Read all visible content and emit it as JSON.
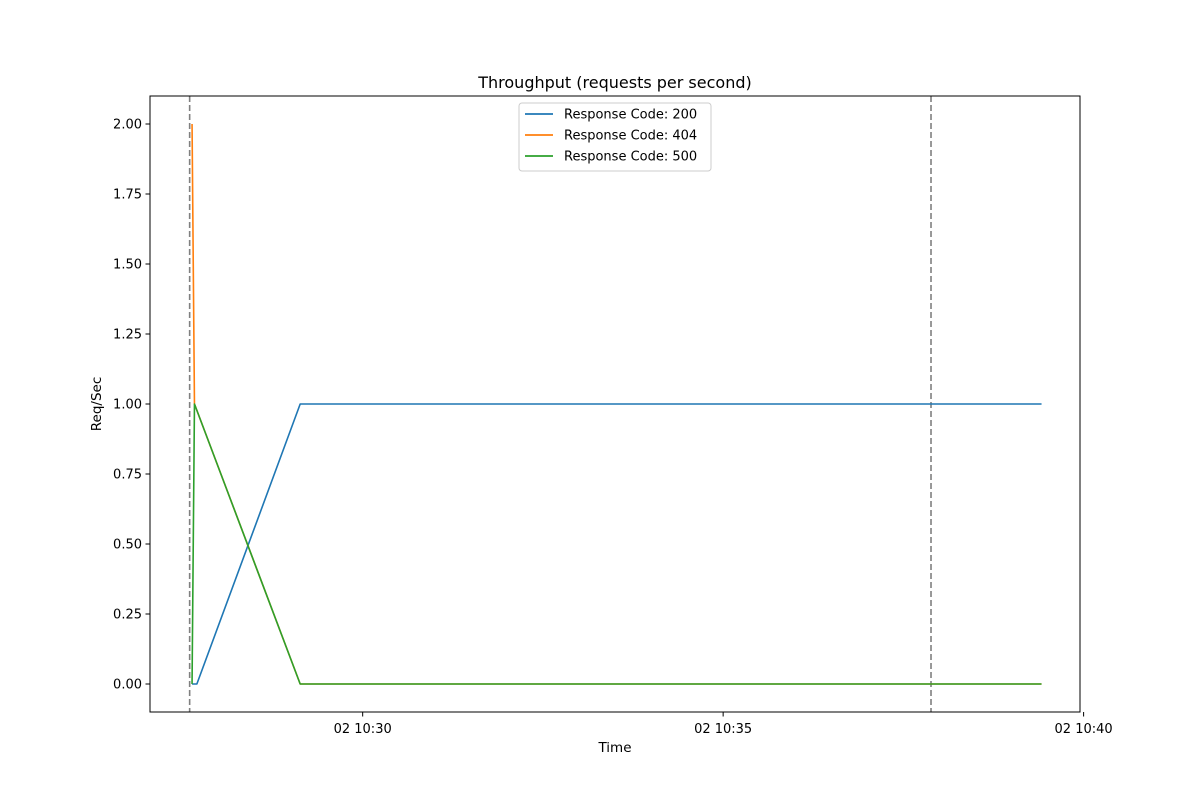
{
  "chart_data": {
    "type": "line",
    "title": "Throughput (requests per second)",
    "xlabel": "Time",
    "ylabel": "Req/Sec",
    "x_axis": {
      "type": "time",
      "range": [
        "10:27:03",
        "10:39:57"
      ],
      "ticks": [
        {
          "time": "10:30:00",
          "label": "02 10:30"
        },
        {
          "time": "10:35:00",
          "label": "02 10:35"
        },
        {
          "time": "10:40:00",
          "label": "02 10:40"
        }
      ]
    },
    "y_axis": {
      "range": [
        -0.1,
        2.1
      ],
      "ticks": [
        {
          "value": 0.0,
          "label": "0.00"
        },
        {
          "value": 0.25,
          "label": "0.25"
        },
        {
          "value": 0.5,
          "label": "0.50"
        },
        {
          "value": 0.75,
          "label": "0.75"
        },
        {
          "value": 1.0,
          "label": "1.00"
        },
        {
          "value": 1.25,
          "label": "1.25"
        },
        {
          "value": 1.5,
          "label": "1.50"
        },
        {
          "value": 1.75,
          "label": "1.75"
        },
        {
          "value": 2.0,
          "label": "2.00"
        }
      ]
    },
    "grid": false,
    "legend_position": "top-center",
    "series": [
      {
        "name": "Response Code: 200",
        "color": "#1f77b4",
        "points": [
          {
            "x": "10:27:38",
            "y": 0
          },
          {
            "x": "10:27:42",
            "y": 0
          },
          {
            "x": "10:29:08",
            "y": 1
          },
          {
            "x": "10:39:25",
            "y": 1
          }
        ]
      },
      {
        "name": "Response Code: 404",
        "color": "#ff7f0e",
        "points": [
          {
            "x": "10:27:38",
            "y": 2
          },
          {
            "x": "10:27:40",
            "y": 1
          },
          {
            "x": "10:29:08",
            "y": 0
          },
          {
            "x": "10:39:25",
            "y": 0
          }
        ]
      },
      {
        "name": "Response Code: 500",
        "color": "#2ca02c",
        "points": [
          {
            "x": "10:27:38",
            "y": 0
          },
          {
            "x": "10:27:40",
            "y": 1
          },
          {
            "x": "10:29:08",
            "y": 0
          },
          {
            "x": "10:39:25",
            "y": 0
          }
        ]
      }
    ],
    "vertical_markers": [
      {
        "x": "10:27:36",
        "style": "dashed",
        "color": "#808080"
      },
      {
        "x": "10:37:53",
        "style": "dashed",
        "color": "#808080"
      }
    ]
  }
}
